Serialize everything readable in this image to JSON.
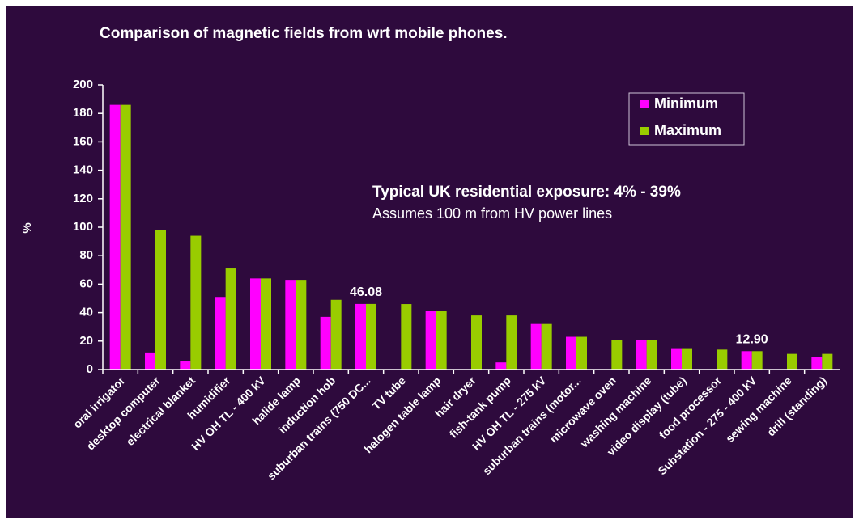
{
  "chart_data": {
    "type": "bar",
    "title": "Comparison of magnetic fields from wrt mobile phones.",
    "y_label": "%",
    "annotations": [
      "Typical UK residential exposure: 4% - 39%",
      "Assumes 100 m from HV power lines"
    ],
    "categories": [
      "oral irrigator",
      "desktop computer",
      "electrical blanket",
      "humidifier",
      "HV OH TL - 400 kV",
      "halide lamp",
      "induction hob",
      "suburban trains (750 DC...",
      "TV tube",
      "halogen table lamp",
      "hair dryer",
      "fish-tank pump",
      "HV OH TL - 275 kV",
      "suburban trains (motor...",
      "microwave oven",
      "washing machine",
      "video display (tube)",
      "food processor",
      "Substation - 275 - 400 kV",
      "sewing machine",
      "drill (standing)"
    ],
    "series": [
      {
        "name": "Minimum",
        "color": "#ff00ff",
        "values": [
          186,
          12,
          6,
          51,
          64,
          63,
          37,
          46.08,
          0,
          41,
          0,
          5,
          32,
          23,
          0,
          21,
          15,
          0,
          12.9,
          0,
          9
        ],
        "value_labels": [
          null,
          null,
          null,
          null,
          null,
          null,
          null,
          "46.08",
          null,
          null,
          null,
          null,
          null,
          null,
          null,
          null,
          null,
          null,
          "12.90",
          null,
          null
        ]
      },
      {
        "name": "Maximum",
        "color": "#99cc00",
        "values": [
          186,
          98,
          94,
          71,
          64,
          63,
          49,
          46.08,
          46,
          41,
          38,
          38,
          32,
          23,
          21,
          21,
          15,
          14,
          12.9,
          11,
          11
        ]
      }
    ],
    "ylim": [
      0,
      200
    ],
    "yticks": [
      0,
      20,
      40,
      60,
      80,
      100,
      120,
      140,
      160,
      180,
      200
    ],
    "legend": "top-right"
  }
}
